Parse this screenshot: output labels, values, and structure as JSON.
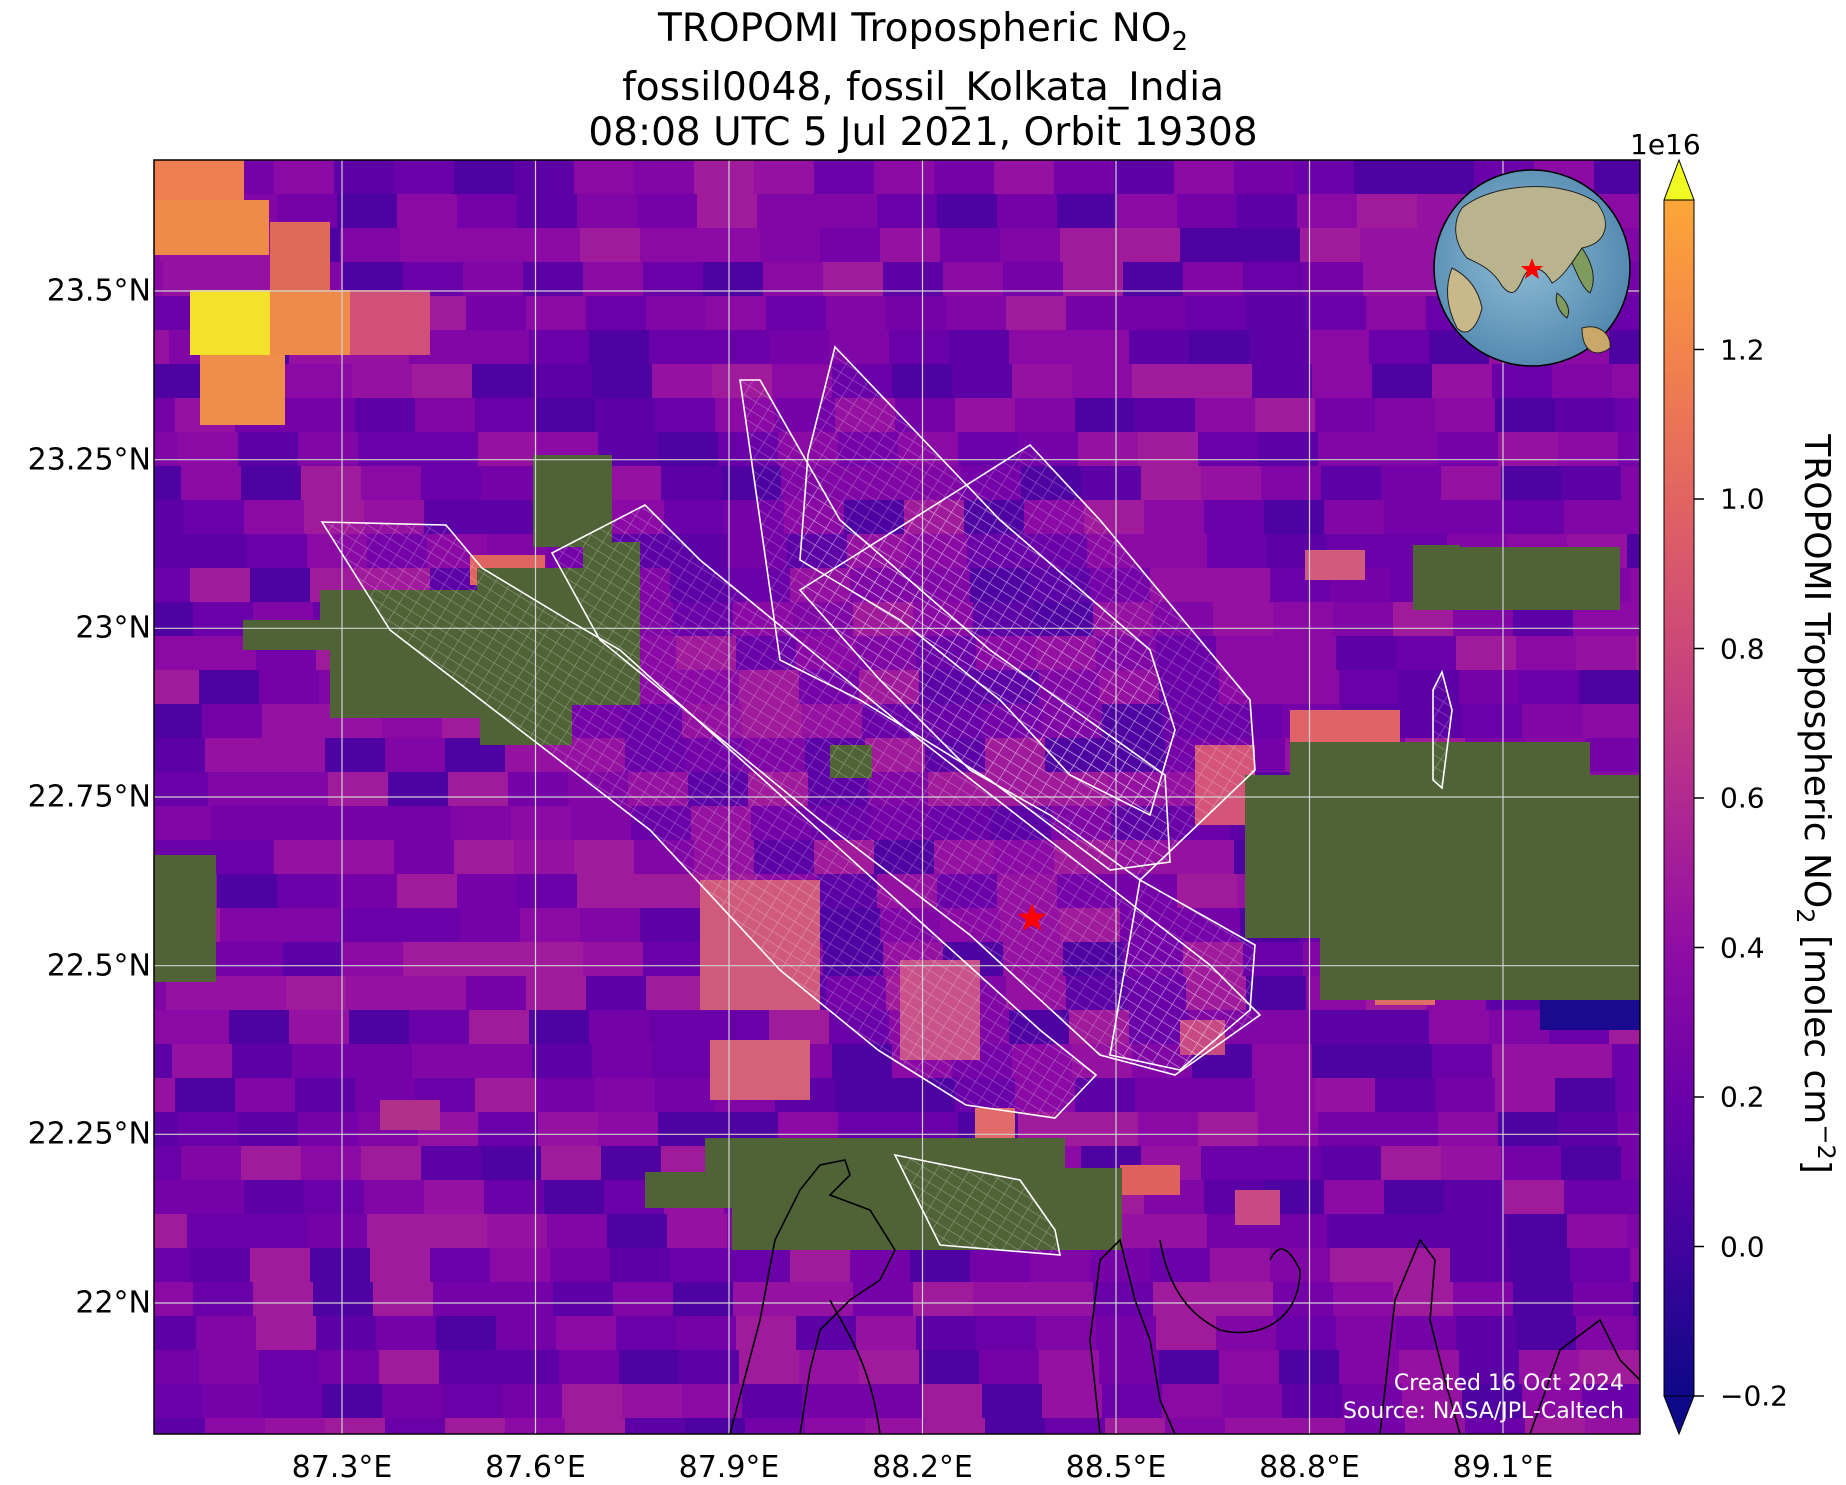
{
  "title": {
    "line1_prefix": "TROPOMI Tropospheric NO",
    "line1_sub": "2",
    "line2": "fossil0048, fossil_Kolkata_India",
    "line3": "08:08 UTC 5 Jul 2021, Orbit 19308"
  },
  "axes": {
    "x_ticks": [
      "87.3°E",
      "87.6°E",
      "87.9°E",
      "88.2°E",
      "88.5°E",
      "88.8°E",
      "89.1°E"
    ],
    "x_values": [
      87.3,
      87.6,
      87.9,
      88.2,
      88.5,
      88.8,
      89.1
    ],
    "y_ticks": [
      "23.5°N",
      "23.25°N",
      "23°N",
      "22.75°N",
      "22.5°N",
      "22.25°N",
      "22°N"
    ],
    "y_values": [
      23.5,
      23.25,
      23.0,
      22.75,
      22.5,
      22.25,
      22.0
    ],
    "lon_range": [
      87.0,
      89.4
    ],
    "lat_range": [
      21.8,
      23.7
    ]
  },
  "colorbar": {
    "exponent": "1e16",
    "ticks": [
      "1.2",
      "1.0",
      "0.8",
      "0.6",
      "0.4",
      "0.2",
      "0.0",
      "−0.2"
    ],
    "tick_values": [
      1.2,
      1.0,
      0.8,
      0.6,
      0.4,
      0.2,
      0.0,
      -0.2
    ],
    "range": [
      -0.2,
      1.4
    ],
    "label_prefix": "TROPOMI Tropospheric NO",
    "label_sub": "2",
    "label_suffix": " [molec cm",
    "label_sup": "−2",
    "label_end": "]",
    "colormap": "plasma",
    "extend": "both"
  },
  "credit": {
    "line1": "Created 16 Oct 2024",
    "line2": "Source: NASA/JPL-Caltech"
  },
  "target": {
    "name": "fossil_Kolkata_India",
    "lon": 88.37,
    "lat": 22.57,
    "marker_color": "#ff0000"
  },
  "colors": {
    "background_low": "#7a0fa8",
    "land": "#4d6236",
    "swath_grid": "#ffffff",
    "coastline": "#000000",
    "gridlines": "#d0d0d0"
  }
}
